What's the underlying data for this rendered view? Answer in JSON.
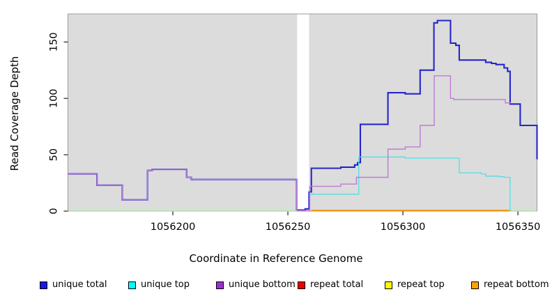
{
  "chart_data": {
    "type": "line",
    "subtype": "step-after-coverage",
    "title": "",
    "xlabel": "Coordinate in Reference Genome",
    "ylabel": "Read Coverage Depth",
    "x_ticks": [
      1056200,
      1056250,
      1056300,
      1056350
    ],
    "y_ticks": [
      0,
      50,
      100,
      150
    ],
    "x_range": [
      1056154.4,
      1056358.3
    ],
    "y_range": [
      0,
      174.9
    ],
    "grid": false,
    "plot_bg_color": "#dcdcdc",
    "plot_border_color": "#9a9a9a",
    "axis_color": "#222222",
    "gap_band": {
      "from": 1056254.0,
      "to": 1056259.2,
      "color": "#ffffff"
    },
    "series": [
      {
        "name": "unique total",
        "color": "#2525cc",
        "width": 2.1,
        "points": [
          [
            1056154.4,
            33
          ],
          [
            1056167,
            23
          ],
          [
            1056178,
            10
          ],
          [
            1056189,
            36
          ],
          [
            1056191,
            37
          ],
          [
            1056206,
            30
          ],
          [
            1056208,
            28
          ],
          [
            1056253.8,
            1
          ],
          [
            1056257.5,
            2
          ],
          [
            1056259.2,
            17
          ],
          [
            1056260.2,
            38
          ],
          [
            1056273,
            39
          ],
          [
            1056279,
            41
          ],
          [
            1056280.3,
            43
          ],
          [
            1056281.5,
            77
          ],
          [
            1056293.5,
            105
          ],
          [
            1056301,
            104
          ],
          [
            1056307.5,
            125
          ],
          [
            1056313.5,
            167
          ],
          [
            1056315,
            169
          ],
          [
            1056320.7,
            149
          ],
          [
            1056323,
            147
          ],
          [
            1056324.5,
            134
          ],
          [
            1056336,
            132
          ],
          [
            1056338.5,
            131
          ],
          [
            1056340.5,
            130
          ],
          [
            1056344,
            127
          ],
          [
            1056345.5,
            124
          ],
          [
            1056346.6,
            95
          ],
          [
            1056351,
            76
          ],
          [
            1056358.3,
            46
          ]
        ],
        "end_x": 1056358.3
      },
      {
        "name": "unique top",
        "color": "#55dde2",
        "width": 1.3,
        "points": [
          [
            1056259.3,
            15
          ],
          [
            1056280.8,
            48
          ],
          [
            1056301,
            47
          ],
          [
            1056324.5,
            34
          ],
          [
            1056334,
            33
          ],
          [
            1056336,
            31
          ],
          [
            1056342,
            30.5
          ],
          [
            1056344,
            30
          ],
          [
            1056346.6,
            0.5
          ]
        ],
        "end_x": 1056347.2
      },
      {
        "name": "unique bottom",
        "color": "#bd7bd3",
        "width": 1.4,
        "points": [
          [
            1056154.4,
            33
          ],
          [
            1056167,
            23
          ],
          [
            1056178,
            10
          ],
          [
            1056189,
            36
          ],
          [
            1056191,
            37
          ],
          [
            1056206,
            30
          ],
          [
            1056208,
            28
          ],
          [
            1056253.8,
            0.5
          ],
          [
            1056259.5,
            22
          ],
          [
            1056273,
            24
          ],
          [
            1056279.8,
            30
          ],
          [
            1056293.5,
            55
          ],
          [
            1056301,
            57
          ],
          [
            1056307.5,
            76
          ],
          [
            1056313.6,
            120
          ],
          [
            1056320.7,
            100
          ],
          [
            1056322.2,
            99
          ],
          [
            1056344.5,
            96
          ]
        ],
        "end_x": 1056347.0
      },
      {
        "name": "repeat bottom",
        "color": "#ff9800",
        "width": 1.7,
        "points": [
          [
            1056260.2,
            0.7
          ]
        ],
        "end_x": 1056346.2
      },
      {
        "name": "zero baseline",
        "color": "#90ee90",
        "width": 1.3,
        "value": 0,
        "segments": [
          [
            1056154.4,
            1056254.0
          ],
          [
            1056346.4,
            1056358.3
          ]
        ]
      }
    ],
    "legend": {
      "position": "bottom",
      "items": [
        {
          "label": "unique total",
          "color": "#1a1ae0"
        },
        {
          "label": "unique top",
          "color": "#00ffff"
        },
        {
          "label": "unique bottom",
          "color": "#9932cc"
        },
        {
          "label": "repeat total",
          "color": "#ee0000"
        },
        {
          "label": "repeat top",
          "color": "#ffff00"
        },
        {
          "label": "repeat bottom",
          "color": "#ffa500"
        }
      ]
    }
  }
}
